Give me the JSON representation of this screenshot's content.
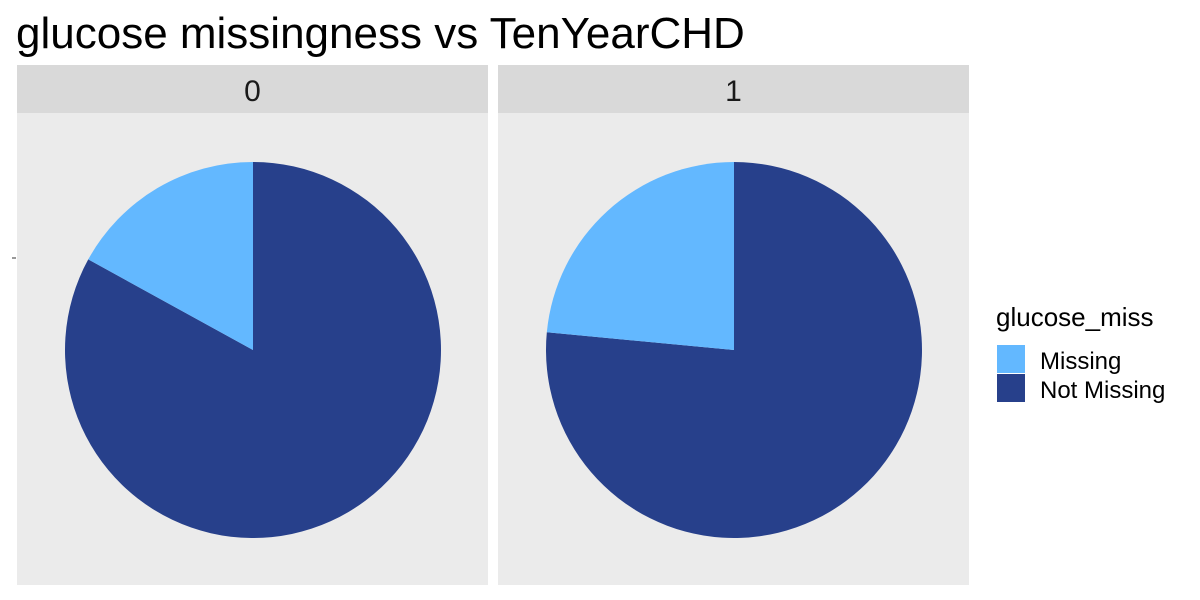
{
  "chart_data": {
    "type": "pie",
    "title": "glucose missingness vs TenYearCHD",
    "facet_variable": "TenYearCHD",
    "facets": [
      {
        "label": "0",
        "slices": [
          {
            "category": "Missing",
            "share": 0.17
          },
          {
            "category": "Not Missing",
            "share": 0.83
          }
        ]
      },
      {
        "label": "1",
        "slices": [
          {
            "category": "Missing",
            "share": 0.235
          },
          {
            "category": "Not Missing",
            "share": 0.765
          }
        ]
      }
    ],
    "legend": {
      "title": "glucose_miss",
      "position": "right",
      "entries": [
        {
          "label": "Missing",
          "color": "#63B8FF"
        },
        {
          "label": "Not Missing",
          "color": "#27408B"
        }
      ]
    },
    "panel_background": "#EBEBEB",
    "strip_background": "#D9D9D9"
  }
}
